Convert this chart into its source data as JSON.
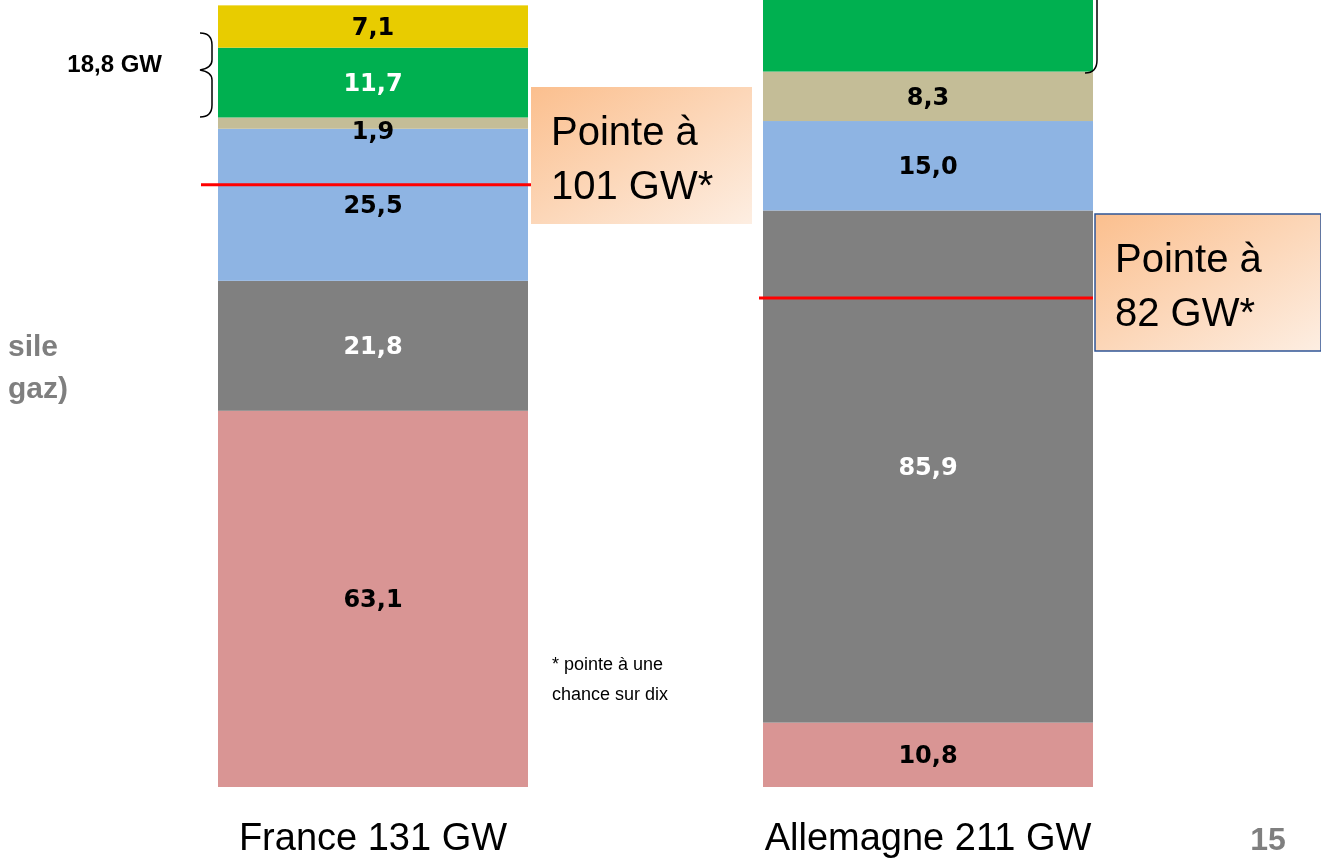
{
  "chart_data": {
    "type": "bar",
    "stacked": true,
    "categories": [
      "France 131 GW",
      "Allemagne 211 GW"
    ],
    "ylim": [
      0,
      132
    ],
    "tick_labels": "x",
    "series": [
      {
        "color": "#d99594",
        "values": [
          63.1,
          10.8
        ],
        "value_labels": [
          "63,1",
          "10,8"
        ]
      },
      {
        "color": "#808080",
        "values": [
          21.8,
          85.9
        ],
        "value_labels": [
          "21,8",
          "85,9"
        ]
      },
      {
        "color": "#8eb4e3",
        "values": [
          25.5,
          15.0
        ],
        "value_labels": [
          "25,5",
          "15,0"
        ]
      },
      {
        "color": "#c4bd97",
        "values": [
          1.9,
          8.3
        ],
        "value_labels": [
          "1,9",
          "8,3"
        ]
      },
      {
        "color": "#00b050",
        "values": [
          11.7,
          12.0
        ],
        "value_labels": [
          "11,7",
          null
        ]
      },
      {
        "color": "#e8cc00",
        "values": [
          7.1,
          null
        ],
        "value_labels": [
          "7,1",
          null
        ]
      }
    ],
    "ref_lines": [
      {
        "axis": "y",
        "value": 101,
        "label": "Pointe à 101 GW*",
        "color": "#ff0000"
      },
      {
        "axis": "y",
        "value": 82,
        "label": "Pointe à 82 GW*",
        "color": "#ff0000"
      }
    ],
    "annotations": [
      "18,8 GW",
      "sile",
      "gaz)",
      "* pointe à une chance sur dix",
      "15"
    ]
  }
}
